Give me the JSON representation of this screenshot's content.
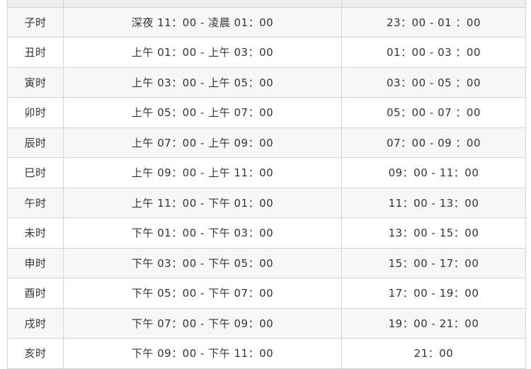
{
  "rows": [
    {
      "shichen": "子时",
      "period": "深夜 11：00 - 凌晨 01：00",
      "time": "23：00 - 01 ：00"
    },
    {
      "shichen": "丑时",
      "period": "上午 01：00 - 上午 03：00",
      "time": "01：00 - 03 ：00"
    },
    {
      "shichen": "寅时",
      "period": "上午 03：00 - 上午 05：00",
      "time": "03：00 - 05 ：00"
    },
    {
      "shichen": "卯时",
      "period": "上午 05：00 - 上午 07：00",
      "time": "05：00 - 07 ：00"
    },
    {
      "shichen": "辰时",
      "period": "上午 07：00 - 上午 09：00",
      "time": "07：00 - 09 ：00"
    },
    {
      "shichen": "巳时",
      "period": "上午 09：00 - 上午 11：00",
      "time": "09：00 - 11：00"
    },
    {
      "shichen": "午时",
      "period": "上午 11：00 - 下午 01：00",
      "time": "11：00 - 13：00"
    },
    {
      "shichen": "未时",
      "period": "下午 01：00 - 下午 03：00",
      "time": "13：00 - 15：00"
    },
    {
      "shichen": "申时",
      "period": "下午 03：00 - 下午 05：00",
      "time": "15：00 - 17：00"
    },
    {
      "shichen": "酉时",
      "period": "下午 05：00 - 下午 07：00",
      "time": "17：00 - 19：00"
    },
    {
      "shichen": "戌时",
      "period": "下午 07：00 - 下午 09：00",
      "time": "19：00 - 21：00"
    },
    {
      "shichen": "亥时",
      "period": "下午 09：00 - 下午 11：00",
      "time": "21：00"
    }
  ]
}
